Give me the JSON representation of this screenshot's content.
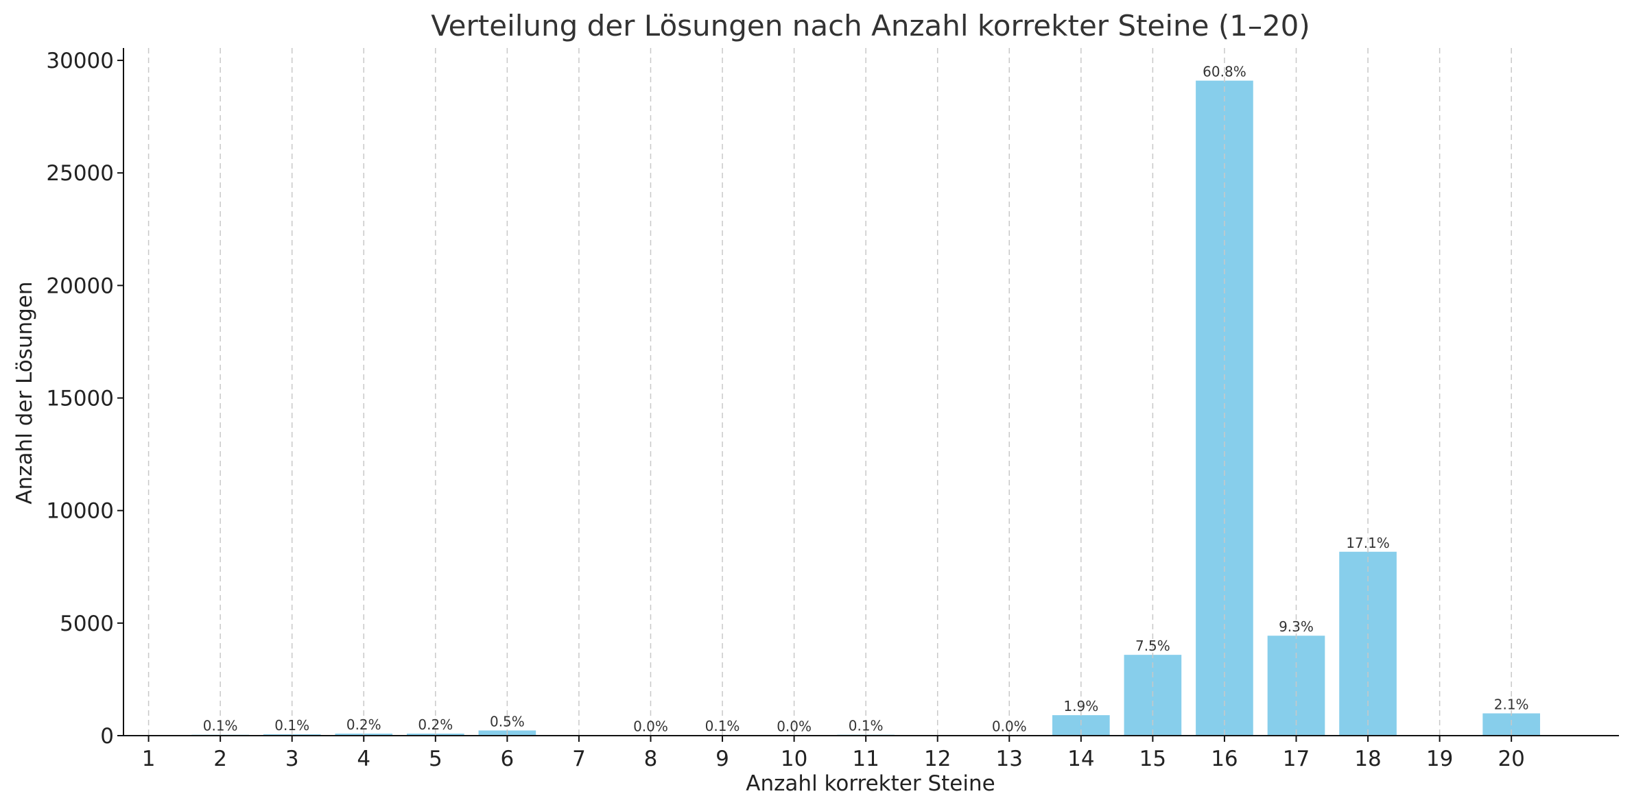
{
  "chart_data": {
    "type": "bar",
    "title": "Verteilung der Lösungen nach Anzahl korrekter Steine (1–20)",
    "xlabel": "Anzahl korrekter Steine",
    "ylabel": "Anzahl der Lösungen",
    "categories": [
      "1",
      "2",
      "3",
      "4",
      "5",
      "6",
      "7",
      "8",
      "9",
      "10",
      "11",
      "12",
      "13",
      "14",
      "15",
      "16",
      "17",
      "18",
      "19",
      "20"
    ],
    "values": [
      0,
      40,
      60,
      90,
      90,
      230,
      0,
      15,
      30,
      10,
      40,
      0,
      15,
      910,
      3590,
      29100,
      4440,
      8170,
      0,
      990
    ],
    "data_labels": [
      "",
      "0.1%",
      "0.1%",
      "0.2%",
      "0.2%",
      "0.5%",
      "",
      "0.0%",
      "0.1%",
      "0.0%",
      "0.1%",
      "",
      "0.0%",
      "1.9%",
      "7.5%",
      "60.8%",
      "9.3%",
      "17.1%",
      "",
      "2.1%"
    ],
    "yticks": [
      0,
      5000,
      10000,
      15000,
      20000,
      25000,
      30000
    ],
    "ylim": [
      0,
      30550
    ],
    "xlim": [
      0.65,
      21.5
    ],
    "grid": "x-dashed",
    "bar_color": "#87CEEB",
    "grid_color": "#c8c8c8"
  }
}
